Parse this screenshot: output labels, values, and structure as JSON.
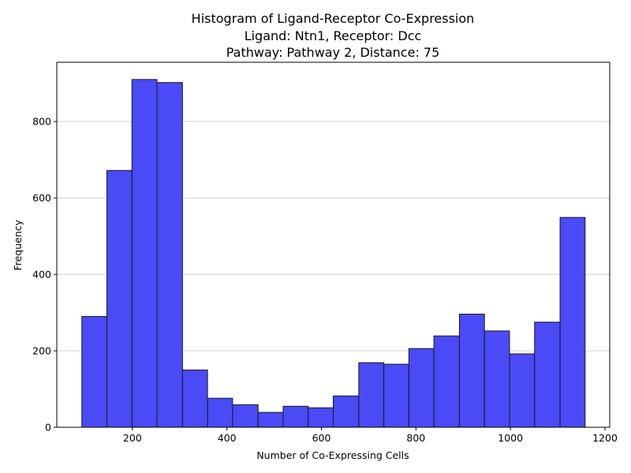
{
  "chart_data": {
    "type": "bar",
    "subtype": "histogram",
    "title_lines": [
      "Histogram of Ligand-Receptor Co-Expression",
      "Ligand: Ntn1, Receptor: Dcc",
      "Pathway: Pathway 2, Distance: 75"
    ],
    "xlabel": "Number of Co-Expressing Cells",
    "ylabel": "Frequency",
    "xlim": [
      40,
      1210
    ],
    "ylim": [
      0,
      955
    ],
    "x_ticks": [
      200,
      400,
      600,
      800,
      1000,
      1200
    ],
    "y_ticks": [
      0,
      200,
      400,
      600,
      800
    ],
    "grid": "y-axis",
    "bar_color": "#4a4af7",
    "edge_color": "#1a1a1a",
    "grid_color": "#c0c0c0",
    "bins": [
      {
        "x0": 93,
        "x1": 146,
        "value": 290
      },
      {
        "x0": 146,
        "x1": 199,
        "value": 672
      },
      {
        "x0": 199,
        "x1": 252,
        "value": 910
      },
      {
        "x0": 252,
        "x1": 306,
        "value": 902
      },
      {
        "x0": 306,
        "x1": 359,
        "value": 150
      },
      {
        "x0": 359,
        "x1": 412,
        "value": 76
      },
      {
        "x0": 412,
        "x1": 466,
        "value": 59
      },
      {
        "x0": 466,
        "x1": 519,
        "value": 39
      },
      {
        "x0": 519,
        "x1": 572,
        "value": 55
      },
      {
        "x0": 572,
        "x1": 625,
        "value": 51
      },
      {
        "x0": 625,
        "x1": 679,
        "value": 82
      },
      {
        "x0": 679,
        "x1": 732,
        "value": 169
      },
      {
        "x0": 732,
        "x1": 785,
        "value": 165
      },
      {
        "x0": 785,
        "x1": 838,
        "value": 206
      },
      {
        "x0": 838,
        "x1": 892,
        "value": 239
      },
      {
        "x0": 892,
        "x1": 945,
        "value": 296
      },
      {
        "x0": 945,
        "x1": 998,
        "value": 252
      },
      {
        "x0": 998,
        "x1": 1051,
        "value": 192
      },
      {
        "x0": 1051,
        "x1": 1105,
        "value": 275
      },
      {
        "x0": 1105,
        "x1": 1158,
        "value": 549
      }
    ]
  }
}
